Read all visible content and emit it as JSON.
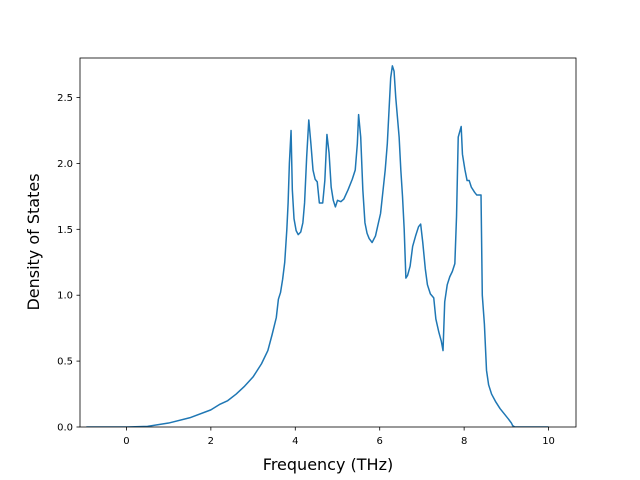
{
  "chart_data": {
    "type": "line",
    "title": "",
    "xlabel": "Frequency (THz)",
    "ylabel": "Density of States",
    "xlim": [
      -1.1,
      10.65
    ],
    "ylim": [
      0,
      2.8
    ],
    "grid": false,
    "x_ticks": [
      0,
      2,
      4,
      6,
      8,
      10
    ],
    "x_tick_labels": [
      "0",
      "2",
      "4",
      "6",
      "8",
      "10"
    ],
    "y_ticks": [
      0.0,
      0.5,
      1.0,
      1.5,
      2.0,
      2.5
    ],
    "y_tick_labels": [
      "0.0",
      "0.5",
      "1.0",
      "1.5",
      "2.0",
      "2.5"
    ],
    "series": [
      {
        "color": "#1f77b4",
        "points": [
          [
            -0.95,
            0.0
          ],
          [
            0.0,
            0.0
          ],
          [
            0.5,
            0.005
          ],
          [
            1.0,
            0.03
          ],
          [
            1.5,
            0.07
          ],
          [
            2.0,
            0.13
          ],
          [
            2.2,
            0.17
          ],
          [
            2.4,
            0.2
          ],
          [
            2.6,
            0.25
          ],
          [
            2.8,
            0.31
          ],
          [
            3.0,
            0.38
          ],
          [
            3.2,
            0.48
          ],
          [
            3.35,
            0.58
          ],
          [
            3.45,
            0.7
          ],
          [
            3.55,
            0.83
          ],
          [
            3.6,
            0.97
          ],
          [
            3.65,
            1.02
          ],
          [
            3.7,
            1.12
          ],
          [
            3.75,
            1.25
          ],
          [
            3.8,
            1.5
          ],
          [
            3.83,
            1.7
          ],
          [
            3.86,
            2.0
          ],
          [
            3.9,
            2.25
          ],
          [
            3.93,
            1.8
          ],
          [
            3.97,
            1.58
          ],
          [
            4.02,
            1.49
          ],
          [
            4.07,
            1.46
          ],
          [
            4.13,
            1.48
          ],
          [
            4.18,
            1.55
          ],
          [
            4.22,
            1.7
          ],
          [
            4.27,
            2.05
          ],
          [
            4.32,
            2.33
          ],
          [
            4.37,
            2.15
          ],
          [
            4.42,
            1.95
          ],
          [
            4.47,
            1.88
          ],
          [
            4.52,
            1.86
          ],
          [
            4.57,
            1.7
          ],
          [
            4.65,
            1.7
          ],
          [
            4.7,
            1.87
          ],
          [
            4.75,
            2.22
          ],
          [
            4.8,
            2.08
          ],
          [
            4.85,
            1.82
          ],
          [
            4.9,
            1.72
          ],
          [
            4.95,
            1.67
          ],
          [
            5.0,
            1.72
          ],
          [
            5.08,
            1.71
          ],
          [
            5.15,
            1.73
          ],
          [
            5.25,
            1.8
          ],
          [
            5.35,
            1.88
          ],
          [
            5.42,
            1.95
          ],
          [
            5.47,
            2.15
          ],
          [
            5.5,
            2.37
          ],
          [
            5.55,
            2.2
          ],
          [
            5.6,
            1.8
          ],
          [
            5.65,
            1.55
          ],
          [
            5.7,
            1.47
          ],
          [
            5.75,
            1.43
          ],
          [
            5.82,
            1.4
          ],
          [
            5.9,
            1.45
          ],
          [
            5.97,
            1.55
          ],
          [
            6.02,
            1.62
          ],
          [
            6.08,
            1.8
          ],
          [
            6.13,
            1.95
          ],
          [
            6.18,
            2.15
          ],
          [
            6.22,
            2.4
          ],
          [
            6.26,
            2.65
          ],
          [
            6.3,
            2.74
          ],
          [
            6.34,
            2.7
          ],
          [
            6.38,
            2.5
          ],
          [
            6.42,
            2.35
          ],
          [
            6.46,
            2.2
          ],
          [
            6.5,
            1.95
          ],
          [
            6.54,
            1.75
          ],
          [
            6.58,
            1.5
          ],
          [
            6.62,
            1.13
          ],
          [
            6.66,
            1.15
          ],
          [
            6.72,
            1.22
          ],
          [
            6.78,
            1.37
          ],
          [
            6.85,
            1.45
          ],
          [
            6.92,
            1.52
          ],
          [
            6.97,
            1.54
          ],
          [
            7.02,
            1.4
          ],
          [
            7.08,
            1.2
          ],
          [
            7.13,
            1.08
          ],
          [
            7.2,
            1.01
          ],
          [
            7.28,
            0.98
          ],
          [
            7.33,
            0.82
          ],
          [
            7.4,
            0.72
          ],
          [
            7.46,
            0.65
          ],
          [
            7.5,
            0.58
          ],
          [
            7.54,
            0.95
          ],
          [
            7.6,
            1.08
          ],
          [
            7.66,
            1.14
          ],
          [
            7.72,
            1.18
          ],
          [
            7.78,
            1.24
          ],
          [
            7.82,
            1.6
          ],
          [
            7.86,
            2.2
          ],
          [
            7.93,
            2.28
          ],
          [
            7.96,
            2.07
          ],
          [
            8.02,
            1.95
          ],
          [
            8.07,
            1.87
          ],
          [
            8.12,
            1.87
          ],
          [
            8.17,
            1.82
          ],
          [
            8.25,
            1.78
          ],
          [
            8.3,
            1.76
          ],
          [
            8.4,
            1.76
          ],
          [
            8.43,
            1.0
          ],
          [
            8.48,
            0.78
          ],
          [
            8.53,
            0.43
          ],
          [
            8.58,
            0.32
          ],
          [
            8.65,
            0.25
          ],
          [
            8.75,
            0.19
          ],
          [
            8.85,
            0.14
          ],
          [
            8.95,
            0.1
          ],
          [
            9.05,
            0.06
          ],
          [
            9.12,
            0.03
          ],
          [
            9.15,
            0.01
          ],
          [
            9.2,
            0.0
          ],
          [
            10.0,
            0.0
          ]
        ]
      }
    ]
  }
}
